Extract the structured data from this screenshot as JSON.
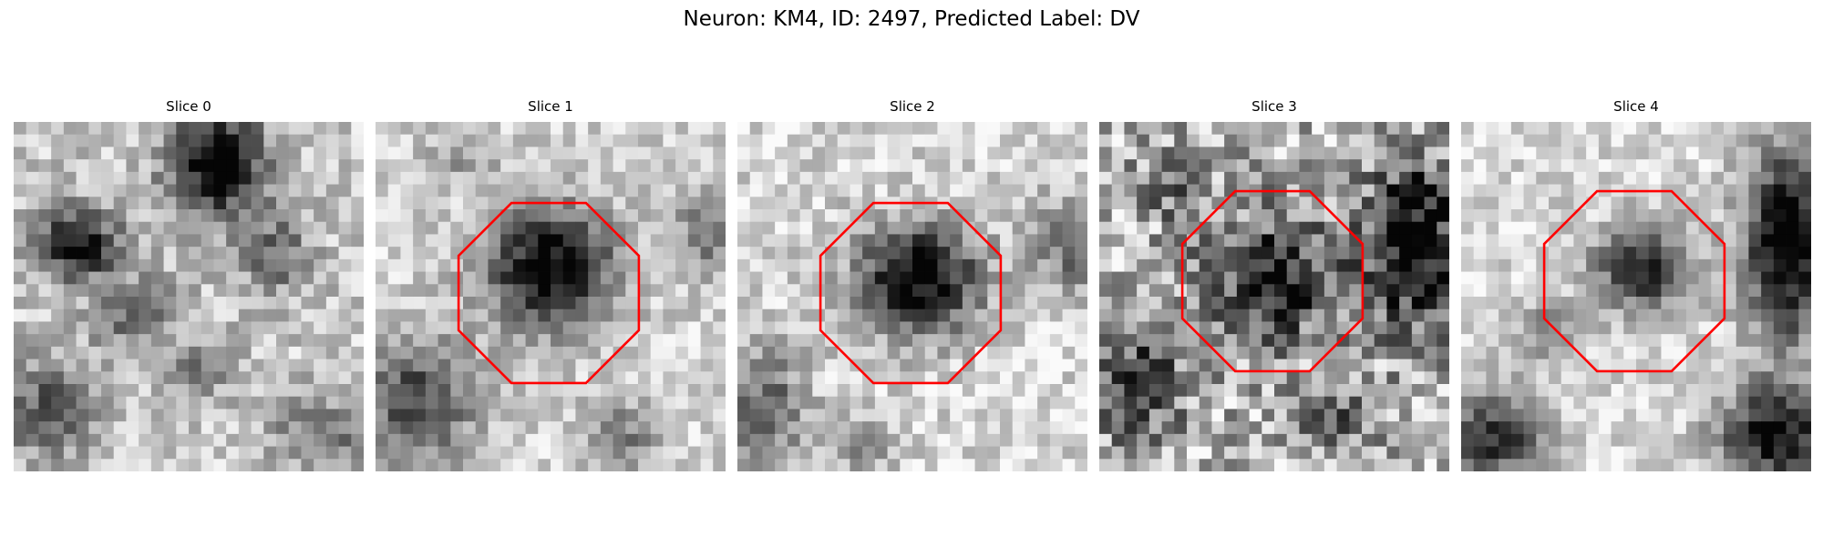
{
  "figure": {
    "title": "Neuron: KM4, ID: 2497, Predicted Label: DV",
    "roi_color": "#ff0000"
  },
  "panels": [
    {
      "title": "Slice 0",
      "roi": false
    },
    {
      "title": "Slice 1",
      "roi": true
    },
    {
      "title": "Slice 2",
      "roi": true
    },
    {
      "title": "Slice 3",
      "roi": true
    },
    {
      "title": "Slice 4",
      "roi": true
    }
  ]
}
